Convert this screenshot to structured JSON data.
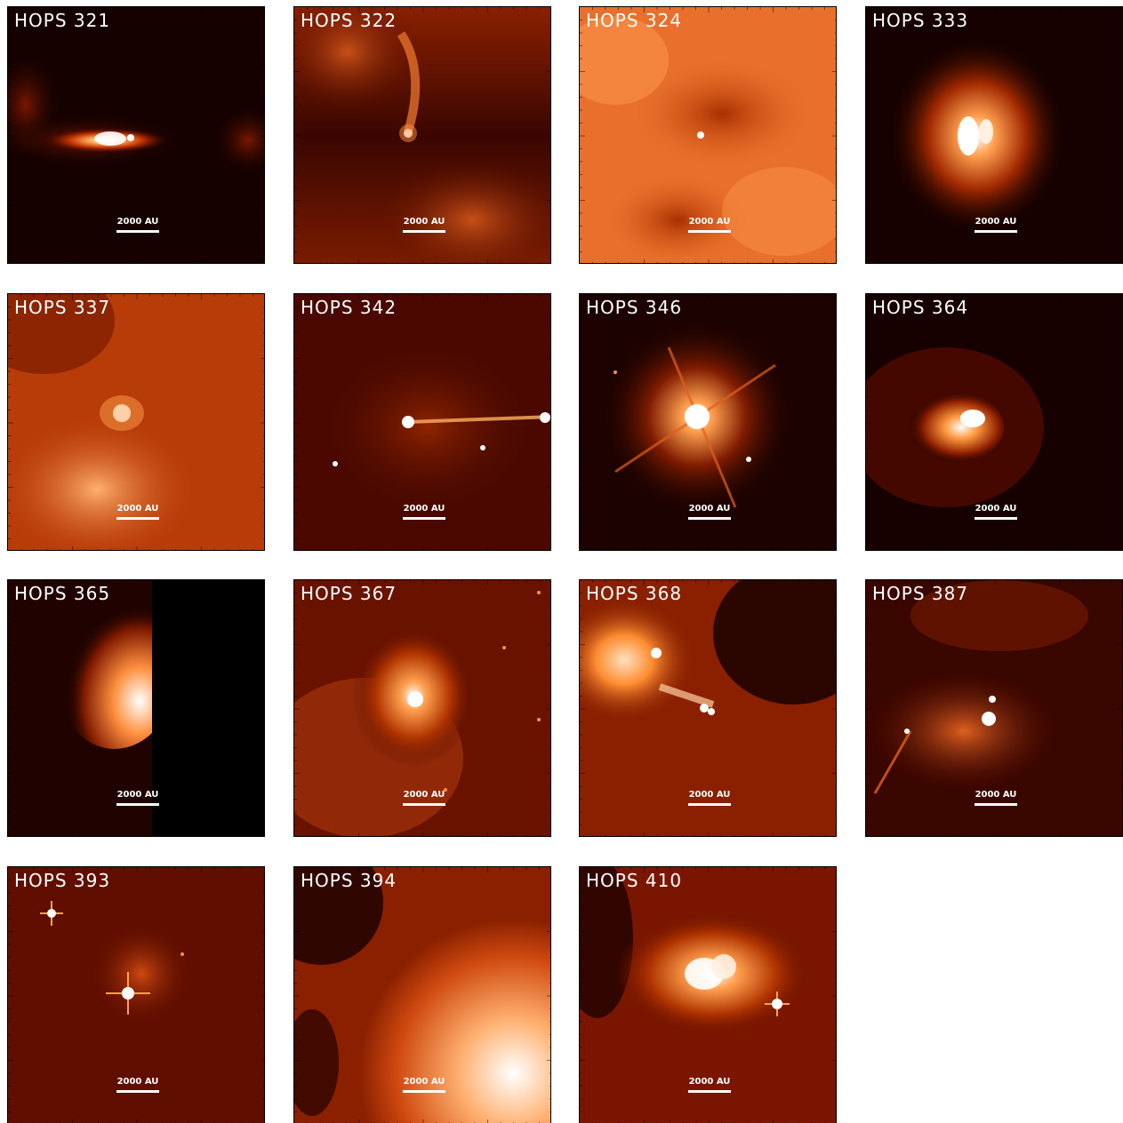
{
  "scale_label": "2000 AU",
  "panels": [
    {
      "name": "HOPS 321"
    },
    {
      "name": "HOPS 322"
    },
    {
      "name": "HOPS 324"
    },
    {
      "name": "HOPS 333"
    },
    {
      "name": "HOPS 337"
    },
    {
      "name": "HOPS 342"
    },
    {
      "name": "HOPS 346"
    },
    {
      "name": "HOPS 364"
    },
    {
      "name": "HOPS 365"
    },
    {
      "name": "HOPS 367"
    },
    {
      "name": "HOPS 368"
    },
    {
      "name": "HOPS 387"
    },
    {
      "name": "HOPS 393"
    },
    {
      "name": "HOPS 394"
    },
    {
      "name": "HOPS 410"
    }
  ],
  "colors": {
    "background_dark": "#1a0200",
    "mid": "#a52a00",
    "bright": "#ff8c2a",
    "core": "#ffffff"
  }
}
